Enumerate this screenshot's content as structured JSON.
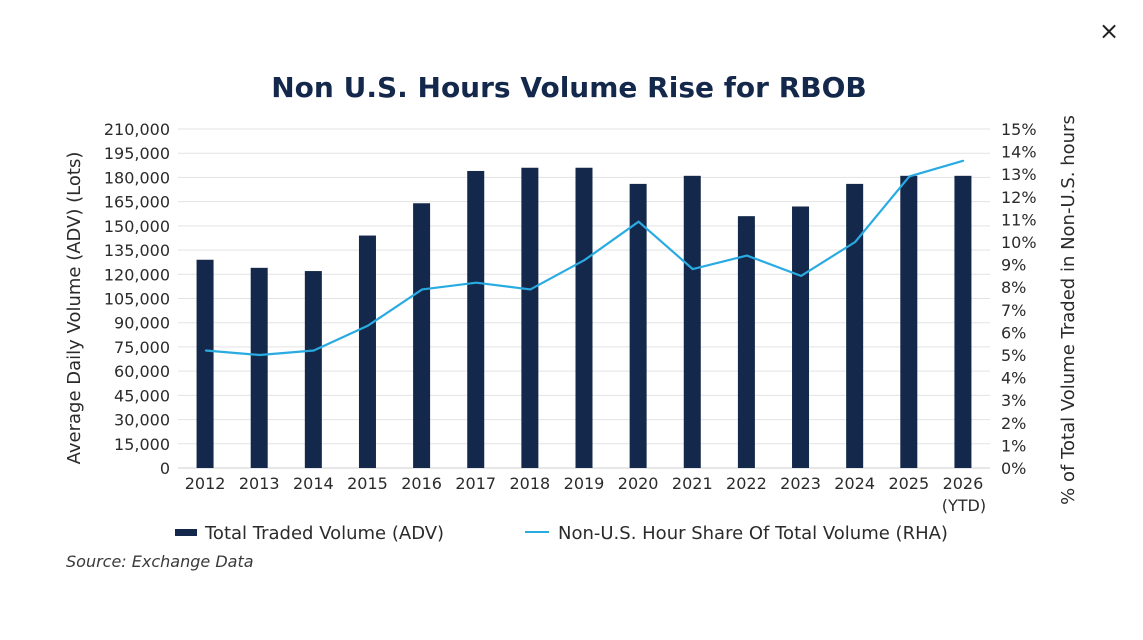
{
  "close_icon_glyph": "×",
  "source_text": "Source: Exchange Data",
  "chart_data": {
    "type": "bar",
    "title": "Non U.S. Hours Volume Rise for RBOB",
    "categories": [
      "2012",
      "2013",
      "2014",
      "2015",
      "2016",
      "2017",
      "2018",
      "2019",
      "2020",
      "2021",
      "2022",
      "2023",
      "2024",
      "2025",
      "2026"
    ],
    "category_sublabels": {
      "2026": "(YTD)"
    },
    "ylabel": "Average Daily Volume (ADV) (Lots)",
    "y2label": "% of Total Volume Traded in Non-U.S. hours",
    "ylim": [
      0,
      210000
    ],
    "y2lim": [
      0,
      15
    ],
    "yticks": [
      "0",
      "15,000",
      "30,000",
      "45,000",
      "60,000",
      "75,000",
      "90,000",
      "105,000",
      "120,000",
      "135,000",
      "150,000",
      "165,000",
      "180,000",
      "195,000",
      "210,000"
    ],
    "y2ticks": [
      "0%",
      "1%",
      "2%",
      "3%",
      "4%",
      "5%",
      "6%",
      "7%",
      "8%",
      "9%",
      "10%",
      "11%",
      "12%",
      "13%",
      "14%",
      "15%"
    ],
    "series": [
      {
        "name": "Total Traded Volume (ADV)",
        "kind": "bar",
        "axis": "left",
        "color": "#13284a",
        "values": [
          129000,
          124000,
          122000,
          144000,
          164000,
          184000,
          186000,
          186000,
          176000,
          181000,
          156000,
          162000,
          176000,
          181000,
          181000
        ]
      },
      {
        "name": "Non-U.S. Hour Share Of Total Volume (RHA)",
        "kind": "line",
        "axis": "right",
        "color": "#29abe2",
        "values": [
          5.2,
          5.0,
          5.2,
          6.3,
          7.9,
          8.2,
          7.9,
          9.2,
          10.9,
          8.8,
          9.4,
          8.5,
          10.0,
          12.9,
          13.6
        ]
      }
    ],
    "legend_position": "bottom",
    "grid": true
  }
}
